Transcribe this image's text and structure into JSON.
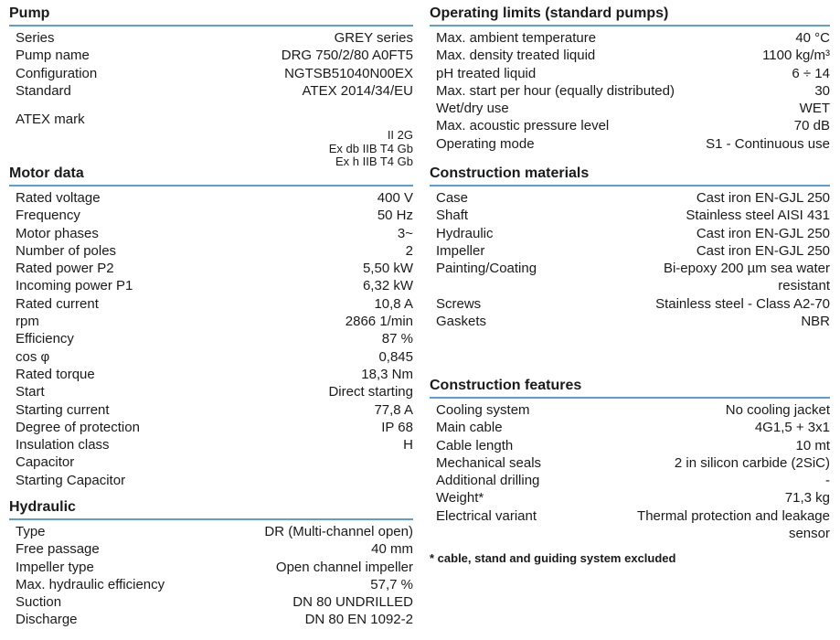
{
  "accent_color": "#5b9fd6",
  "pump": {
    "title": "Pump",
    "rows": [
      {
        "label": "Series",
        "value": "GREY series"
      },
      {
        "label": "Pump name",
        "value": "DRG 750/2/80 A0FT5"
      },
      {
        "label": "Configuration",
        "value": "NGTSB51040N00EX"
      },
      {
        "label": "Standard",
        "value": "ATEX 2014/34/EU"
      }
    ],
    "atex": {
      "label": "ATEX mark",
      "lines": [
        "II 2G",
        "Ex db IIB T4 Gb",
        "Ex h IIB T4 Gb"
      ]
    }
  },
  "motor": {
    "title": "Motor data",
    "rows": [
      {
        "label": "Rated voltage",
        "value": "400 V"
      },
      {
        "label": "Frequency",
        "value": "50 Hz"
      },
      {
        "label": "Motor phases",
        "value": "3~"
      },
      {
        "label": "Number of poles",
        "value": "2"
      },
      {
        "label": "Rated power P2",
        "value": "5,50 kW"
      },
      {
        "label": "Incoming power P1",
        "value": "6,32 kW"
      },
      {
        "label": "Rated current",
        "value": "10,8 A"
      },
      {
        "label": "rpm",
        "value": "2866 1/min"
      },
      {
        "label": "Efficiency",
        "value": "87 %"
      },
      {
        "label": "cos φ",
        "value": "0,845"
      },
      {
        "label": "Rated torque",
        "value": "18,3 Nm"
      },
      {
        "label": "Start",
        "value": "Direct starting"
      },
      {
        "label": "Starting current",
        "value": "77,8 A"
      },
      {
        "label": "Degree of protection",
        "value": "IP 68"
      },
      {
        "label": "Insulation class",
        "value": "H"
      },
      {
        "label": "Capacitor",
        "value": ""
      },
      {
        "label": "Starting Capacitor",
        "value": ""
      }
    ]
  },
  "hydraulic": {
    "title": "Hydraulic",
    "rows": [
      {
        "label": "Type",
        "value": "DR (Multi-channel open)"
      },
      {
        "label": "Free passage",
        "value": "40 mm"
      },
      {
        "label": "Impeller type",
        "value": "Open channel impeller"
      },
      {
        "label": "Max. hydraulic efficiency",
        "value": "57,7 %"
      },
      {
        "label": "Suction",
        "value": "DN 80 UNDRILLED"
      },
      {
        "label": "Discharge",
        "value": "DN 80 EN 1092-2"
      }
    ]
  },
  "operating": {
    "title": "Operating limits (standard pumps)",
    "rows": [
      {
        "label": "Max. ambient temperature",
        "value": "40 °C"
      },
      {
        "label": "Max. density treated liquid",
        "value": "1100 kg/m³"
      },
      {
        "label": "pH treated liquid",
        "value": "6 ÷ 14"
      },
      {
        "label": "Max.  start per hour (equally distributed)",
        "value": "30"
      },
      {
        "label": "Wet/dry use",
        "value": "WET"
      },
      {
        "label": "Max. acoustic pressure level",
        "value": "70 dB"
      },
      {
        "label": "Operating mode",
        "value": "S1 - Continuous use"
      }
    ]
  },
  "materials": {
    "title": "Construction materials",
    "rows": [
      {
        "label": "Case",
        "value": "Cast iron EN-GJL 250"
      },
      {
        "label": "Shaft",
        "value": "Stainless steel AISI 431"
      },
      {
        "label": "Hydraulic",
        "value": "Cast iron EN-GJL 250"
      },
      {
        "label": "Impeller",
        "value": "Cast iron EN-GJL 250"
      },
      {
        "label": "Painting/Coating",
        "value": "Bi-epoxy 200 µm sea water\nresistant"
      },
      {
        "label": "Screws",
        "value": "Stainless steel - Class A2-70"
      },
      {
        "label": "Gaskets",
        "value": "NBR"
      }
    ]
  },
  "features": {
    "title": "Construction features",
    "rows": [
      {
        "label": "Cooling system",
        "value": "No cooling jacket"
      },
      {
        "label": "Main cable",
        "value": "4G1,5 + 3x1"
      },
      {
        "label": "Cable length",
        "value": "10 mt"
      },
      {
        "label": "Mechanical seals",
        "value": "2 in silicon carbide (2SiC)"
      },
      {
        "label": "Additional drilling",
        "value": "-"
      },
      {
        "label": "Weight*",
        "value": "71,3 kg"
      },
      {
        "label": "Electrical variant",
        "value": "Thermal protection and leakage\nsensor"
      }
    ],
    "footnote": "* cable, stand and guiding system excluded"
  }
}
